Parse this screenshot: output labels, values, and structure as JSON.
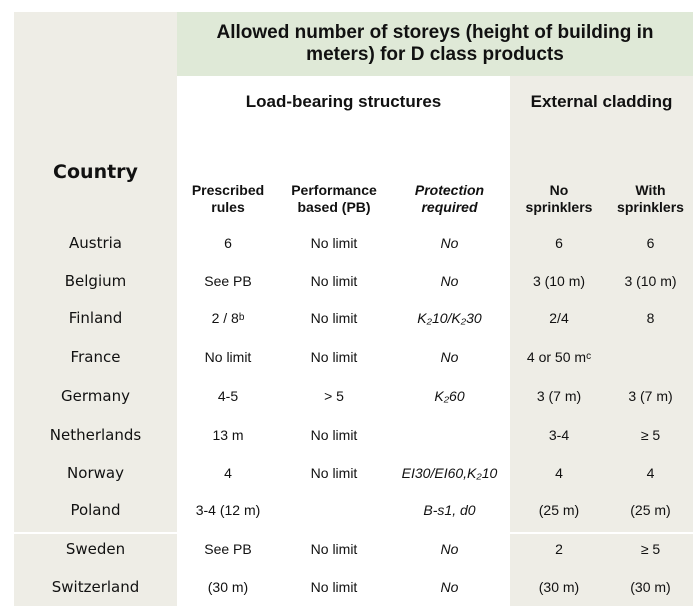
{
  "header": {
    "title": "Allowed number of storeys (height of building in meters) for D class products",
    "country": "Country",
    "load_bearing": "Load-bearing structures",
    "external_cladding": "External cladding",
    "col_prescribed": "Prescribed rules",
    "col_performance": "Performance based (PB)",
    "col_protection": "Protection required",
    "col_no_sprinklers": "No sprinklers",
    "col_with_sprinklers": "With sprinklers"
  },
  "rows": [
    {
      "country": "Austria",
      "prescribed": "6",
      "prescribed_sup": "",
      "performance": "No limit",
      "protection": "No",
      "no_sprinklers": "6",
      "no_sprinklers_sup": "",
      "with_sprinklers": "6"
    },
    {
      "country": "Belgium",
      "prescribed": "See PB",
      "prescribed_sup": "",
      "performance": "No limit",
      "protection": "No",
      "no_sprinklers": "3 (10 m)",
      "no_sprinklers_sup": "",
      "with_sprinklers": "3 (10 m)"
    },
    {
      "country": "Finland",
      "prescribed": "2 / 8",
      "prescribed_sup": "b",
      "performance": "No limit",
      "protection": "K₂10/K₂30",
      "no_sprinklers": "2/4",
      "no_sprinklers_sup": "",
      "with_sprinklers": "8"
    },
    {
      "country": "France",
      "prescribed": "No limit",
      "prescribed_sup": "",
      "performance": "No limit",
      "protection": "No",
      "no_sprinklers": "4 or 50 m",
      "no_sprinklers_sup": "c",
      "with_sprinklers": ""
    },
    {
      "country": "Germany",
      "prescribed": "4-5",
      "prescribed_sup": "",
      "performance": "> 5",
      "protection": "K₂60",
      "no_sprinklers": "3 (7 m)",
      "no_sprinklers_sup": "",
      "with_sprinklers": "3 (7 m)"
    },
    {
      "country": "Netherlands",
      "prescribed": "13 m",
      "prescribed_sup": "",
      "performance": "No limit",
      "protection": "",
      "no_sprinklers": "3-4",
      "no_sprinklers_sup": "",
      "with_sprinklers": "≥ 5"
    },
    {
      "country": "Norway",
      "prescribed": "4",
      "prescribed_sup": "",
      "performance": "No limit",
      "protection": "EI30/EI60,K₂10",
      "no_sprinklers": "4",
      "no_sprinklers_sup": "",
      "with_sprinklers": "4"
    },
    {
      "country": "Poland",
      "prescribed": "3-4 (12 m)",
      "prescribed_sup": "",
      "performance": "",
      "protection": "B-s1, d0",
      "no_sprinklers": "(25 m)",
      "no_sprinklers_sup": "",
      "with_sprinklers": "(25 m)"
    },
    {
      "country": "Sweden",
      "prescribed": "See PB",
      "prescribed_sup": "",
      "performance": "No limit",
      "protection": "No",
      "no_sprinklers": "2",
      "no_sprinklers_sup": "",
      "with_sprinklers": "≥ 5"
    },
    {
      "country": "Switzerland",
      "prescribed": "(30 m)",
      "prescribed_sup": "",
      "performance": "No limit",
      "protection": "No",
      "no_sprinklers": "(30 m)",
      "no_sprinklers_sup": "",
      "with_sprinklers": "(30 m)"
    }
  ],
  "colors": {
    "beige": "#eeede6",
    "green": "#dfe9d7",
    "white": "#ffffff"
  }
}
